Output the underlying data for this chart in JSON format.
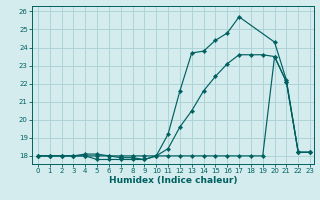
{
  "xlabel": "Humidex (Indice chaleur)",
  "bg_color": "#d4ecee",
  "grid_color": "#aed4d8",
  "line_color": "#006060",
  "xlim_min": -0.5,
  "xlim_max": 23.3,
  "ylim_min": 17.55,
  "ylim_max": 26.3,
  "xticks": [
    0,
    1,
    2,
    3,
    4,
    5,
    6,
    7,
    8,
    9,
    10,
    11,
    12,
    13,
    14,
    15,
    16,
    17,
    18,
    19,
    20,
    21,
    22,
    23
  ],
  "yticks": [
    18,
    19,
    20,
    21,
    22,
    23,
    24,
    25,
    26
  ],
  "series1_x": [
    0,
    1,
    2,
    3,
    4,
    5,
    6,
    7,
    8,
    9,
    10,
    11,
    12,
    13,
    14,
    15,
    16,
    17,
    20,
    21,
    22,
    23
  ],
  "series1_y": [
    18.0,
    18.0,
    18.0,
    18.0,
    18.0,
    17.8,
    17.8,
    17.8,
    17.8,
    17.8,
    18.0,
    19.2,
    21.6,
    23.7,
    23.8,
    24.4,
    24.8,
    25.7,
    24.3,
    22.2,
    18.2,
    18.2
  ],
  "series2_x": [
    0,
    1,
    2,
    3,
    4,
    5,
    6,
    7,
    8,
    9,
    10,
    11,
    12,
    13,
    14,
    15,
    16,
    17,
    18,
    19,
    20,
    21,
    22,
    23
  ],
  "series2_y": [
    18.0,
    18.0,
    18.0,
    18.0,
    18.0,
    18.0,
    18.0,
    18.0,
    18.0,
    18.0,
    18.0,
    18.0,
    18.0,
    18.0,
    18.0,
    18.0,
    18.0,
    18.0,
    18.0,
    18.0,
    23.5,
    22.1,
    18.2,
    18.2
  ],
  "series3_x": [
    0,
    1,
    2,
    3,
    4,
    5,
    6,
    7,
    8,
    9,
    10,
    11,
    12,
    13,
    14,
    15,
    16,
    17,
    18,
    19,
    20,
    21,
    22,
    23
  ],
  "series3_y": [
    18.0,
    18.0,
    18.0,
    18.0,
    18.1,
    18.1,
    18.0,
    17.9,
    17.9,
    17.8,
    18.0,
    18.4,
    19.6,
    20.5,
    21.6,
    22.4,
    23.1,
    23.6,
    23.6,
    23.6,
    23.5,
    22.1,
    18.2,
    18.2
  ]
}
